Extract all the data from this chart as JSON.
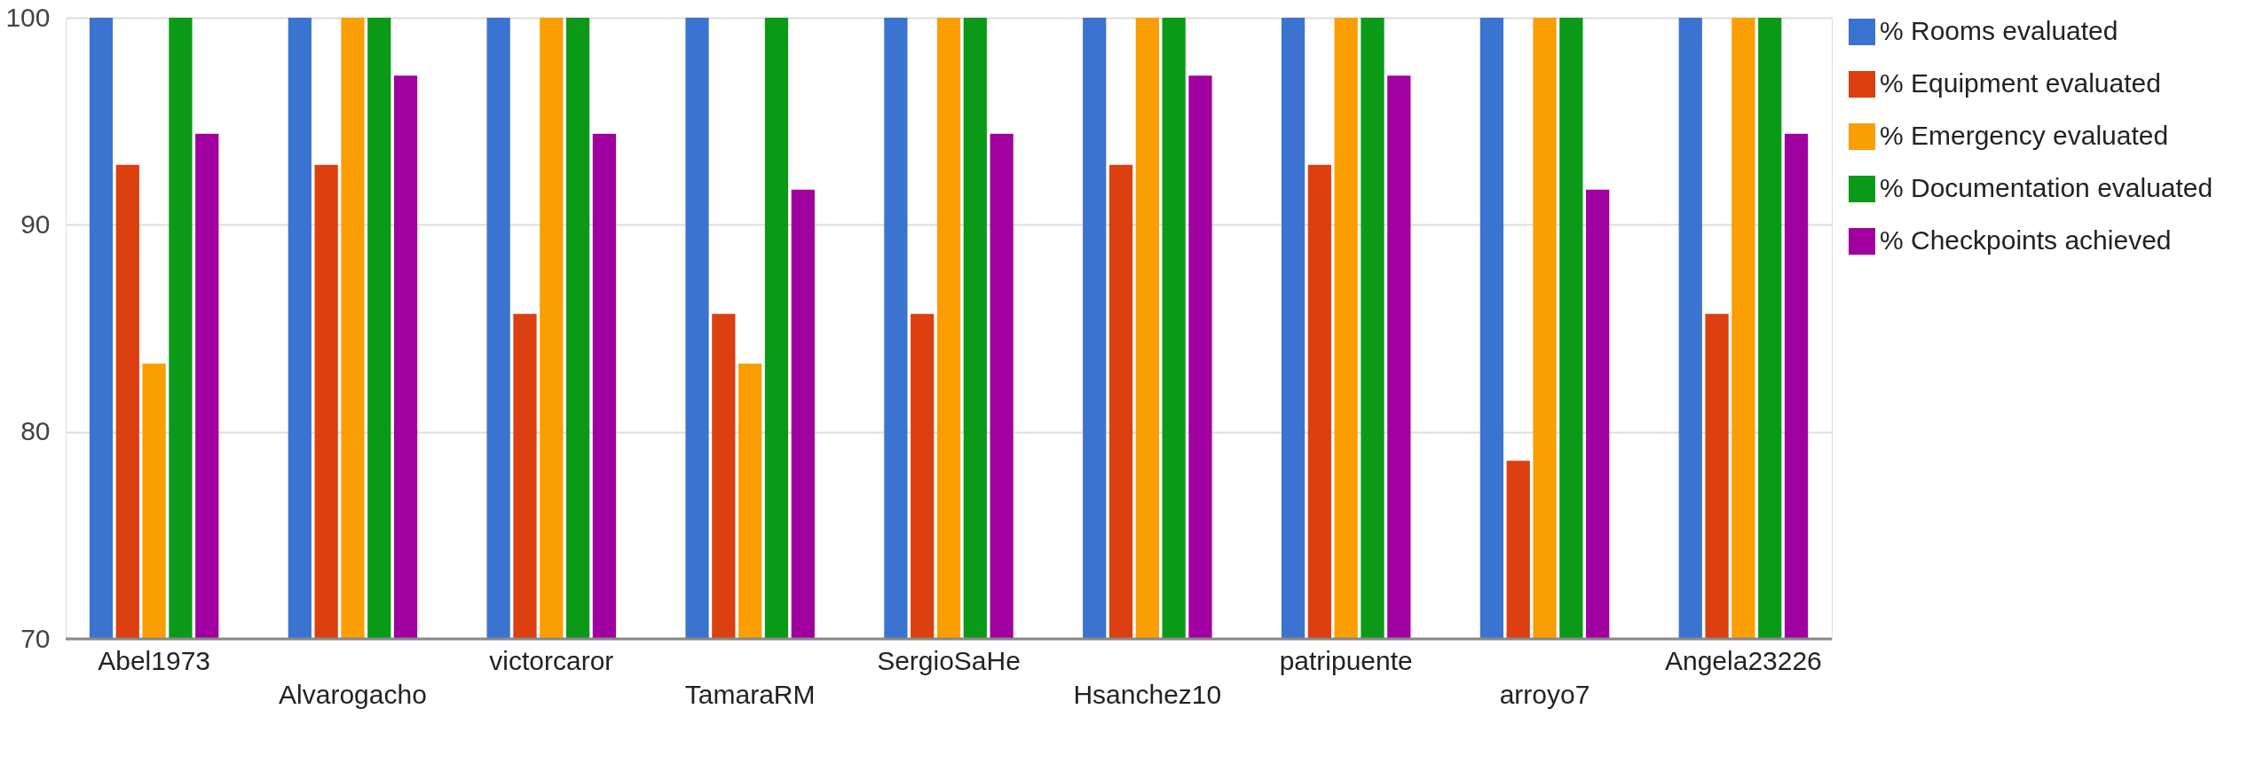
{
  "chart_data": {
    "type": "bar",
    "categories": [
      "Abel1973",
      "Alvarogacho",
      "victorcaror",
      "TamaraRM",
      "SergioSaHe",
      "Hsanchez10",
      "patripuente",
      "arroyo7",
      "Angela23226"
    ],
    "series": [
      {
        "name": "% Rooms evaluated",
        "color": "#3b73d1",
        "values": [
          100,
          100,
          100,
          100,
          100,
          100,
          100,
          100,
          100
        ]
      },
      {
        "name": "% Equipment evaluated",
        "color": "#dc3f10",
        "values": [
          92.9,
          92.9,
          85.7,
          85.7,
          85.7,
          92.9,
          92.9,
          78.6,
          85.7
        ]
      },
      {
        "name": "% Emergency evaluated",
        "color": "#fa9e04",
        "values": [
          83.3,
          100,
          100,
          83.3,
          100,
          100,
          100,
          100,
          100
        ]
      },
      {
        "name": "% Documentation evaluated",
        "color": "#0a9a18",
        "values": [
          100,
          100,
          100,
          100,
          100,
          100,
          100,
          100,
          100
        ]
      },
      {
        "name": "% Checkpoints achieved",
        "color": "#a000a0",
        "values": [
          94.4,
          97.2,
          94.4,
          91.7,
          94.4,
          97.2,
          97.2,
          91.7,
          94.4
        ]
      }
    ],
    "ylim": [
      70,
      100
    ],
    "yticks": [
      70,
      80,
      90,
      100
    ],
    "grid": "y",
    "legend": "right"
  }
}
